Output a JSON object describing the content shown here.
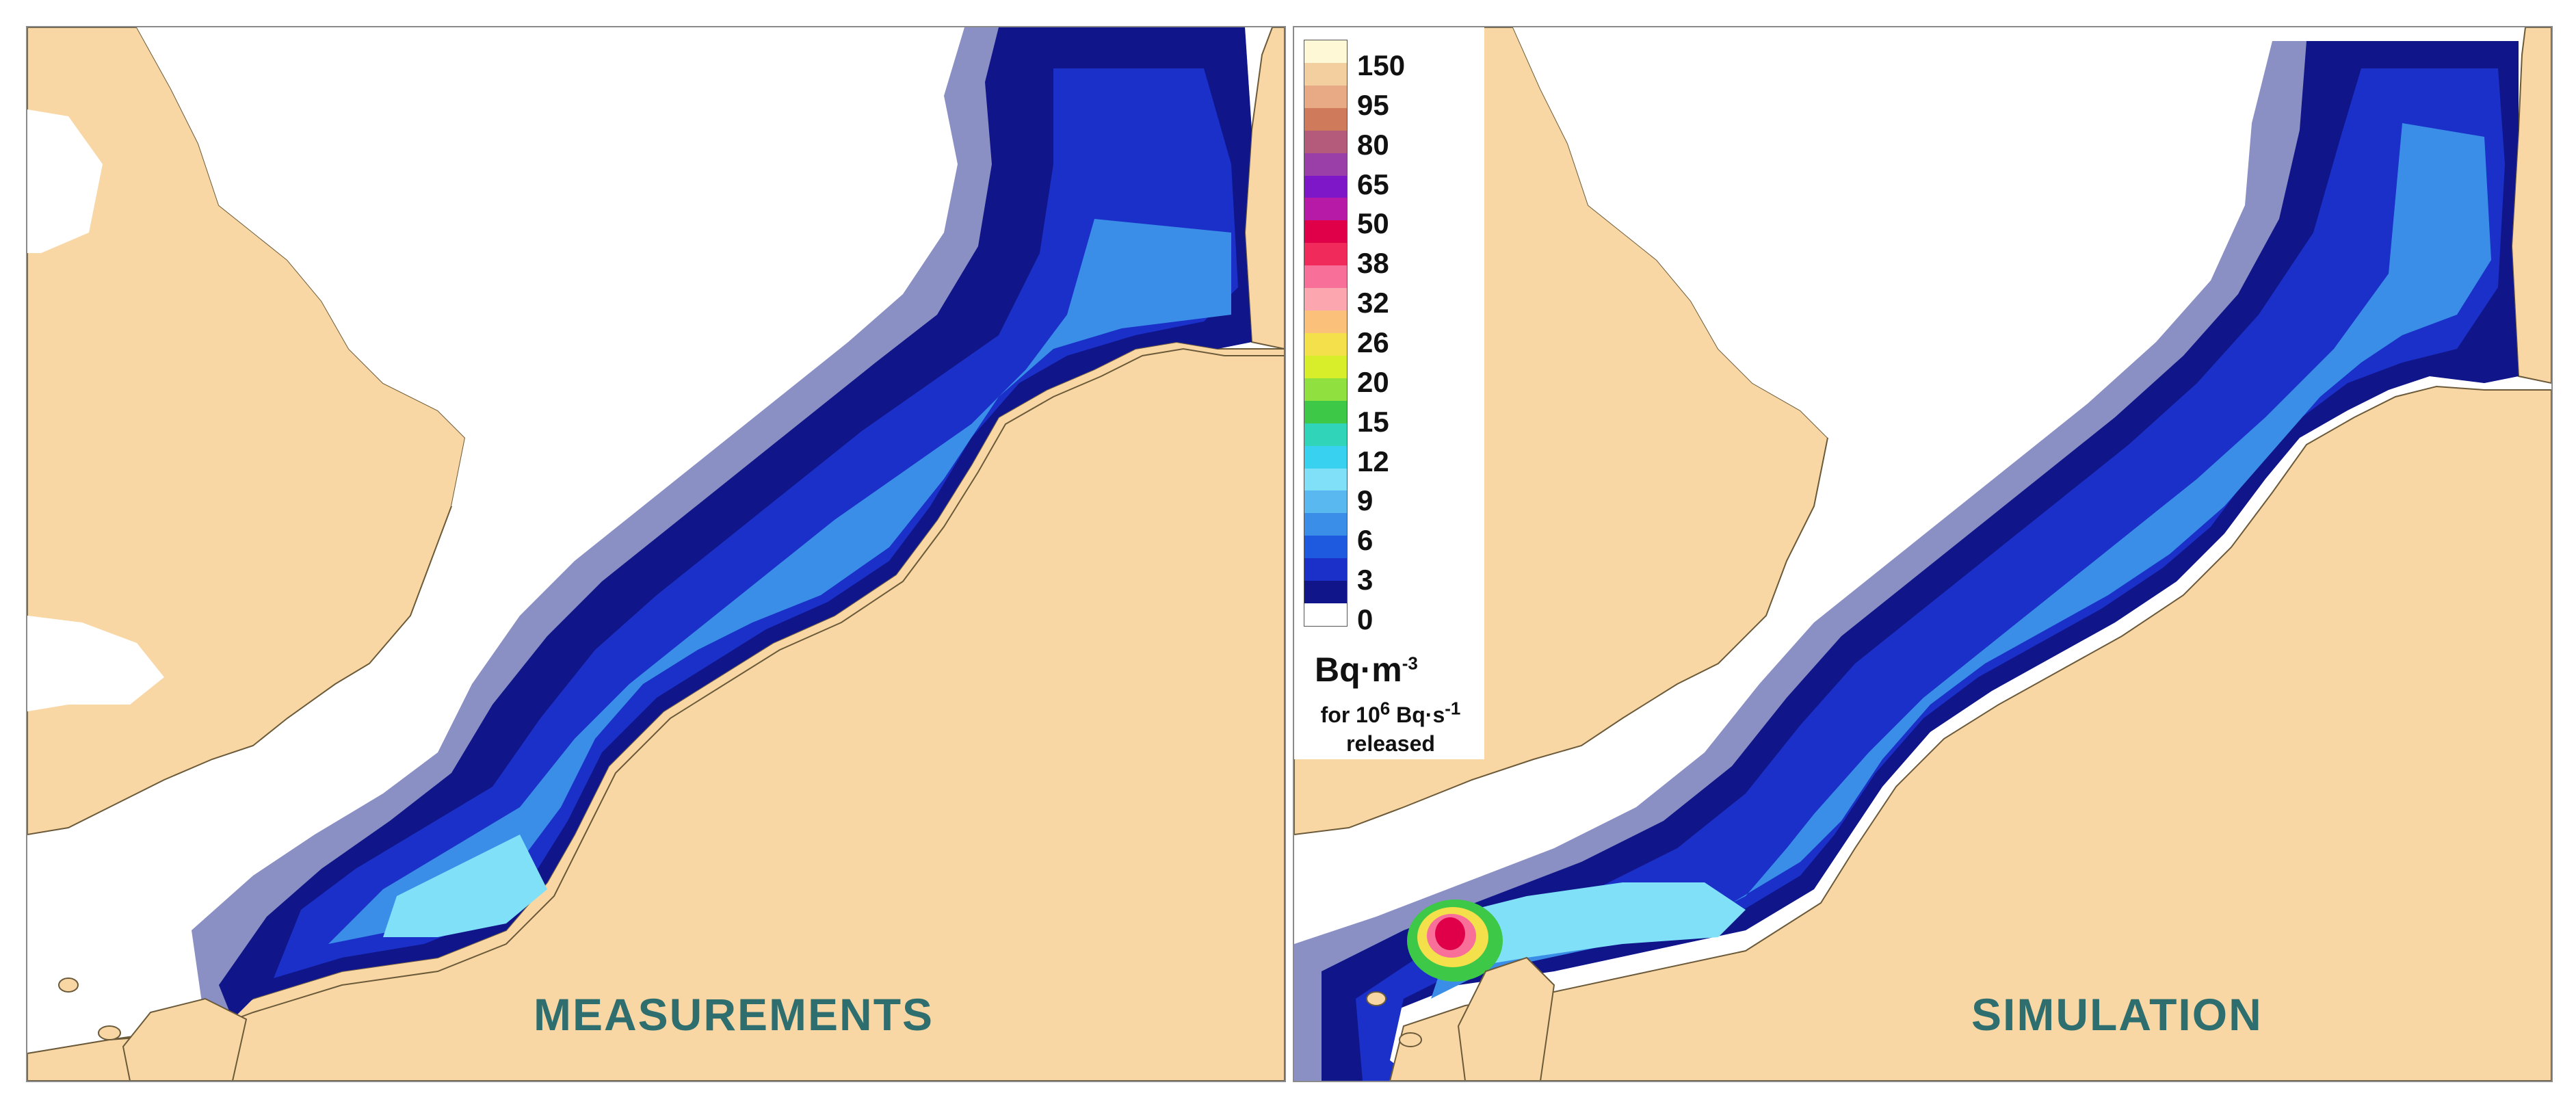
{
  "panels": {
    "left_label": "MEASUREMENTS",
    "right_label": "SIMULATION"
  },
  "colors": {
    "land": "#f8d7a4",
    "sea_background": "#ffffff",
    "label_text": "#2e6e6e",
    "coastline": "#6b5a3a"
  },
  "legend": {
    "unit_main": "Bq·m",
    "unit_exp": "-3",
    "note_line1": "for 10",
    "note_exp1": "6",
    "note_mid": " Bq·s",
    "note_exp2": "-1",
    "note_line2": "released",
    "ticks": [
      "150",
      "95",
      "80",
      "65",
      "50",
      "38",
      "32",
      "26",
      "20",
      "15",
      "12",
      "9",
      "6",
      "3",
      "0"
    ],
    "scale_colors": [
      "#fff8d6",
      "#f3cfa0",
      "#e7aa85",
      "#d07a5c",
      "#b45a7a",
      "#9a3ea8",
      "#7e17c8",
      "#b81aa8",
      "#e0004a",
      "#f02a5a",
      "#f8709a",
      "#fca6b0",
      "#fbc07a",
      "#f4e04a",
      "#d8ee2a",
      "#90e040",
      "#3ec848",
      "#30d4b8",
      "#38d2f0",
      "#7fe0f8",
      "#5ab8f0",
      "#3a8ee8",
      "#1e5ae0",
      "#1a30c8",
      "#10158a",
      "#ffffff"
    ]
  }
}
